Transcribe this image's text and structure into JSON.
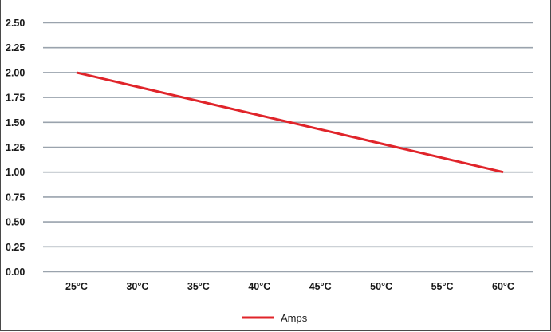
{
  "chart_data": {
    "type": "line",
    "categories": [
      "25°C",
      "30°C",
      "35°C",
      "40°C",
      "45°C",
      "50°C",
      "55°C",
      "60°C"
    ],
    "series": [
      {
        "name": "Amps",
        "color": "#e0242a",
        "values": [
          2.0,
          1.857,
          1.714,
          1.571,
          1.429,
          1.286,
          1.143,
          1.0
        ]
      }
    ],
    "yticks": [
      "0.00",
      "0.25",
      "0.50",
      "0.75",
      "1.00",
      "1.25",
      "1.50",
      "1.75",
      "2.00",
      "2.25",
      "2.50"
    ],
    "ylim": [
      0,
      2.5
    ],
    "grid": true,
    "legend_position": "bottom-center",
    "grid_color": "#9aa3ad"
  }
}
